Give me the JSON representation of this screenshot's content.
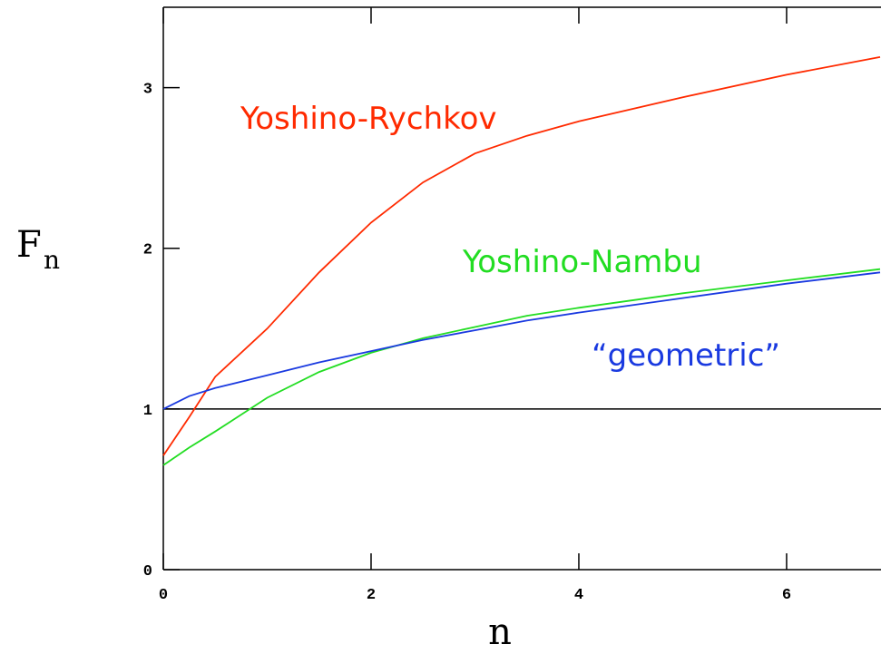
{
  "chart_data": {
    "type": "line",
    "xlabel": "n",
    "ylabel": "F",
    "ylabel_subscript": "n",
    "x": [
      0,
      0.25,
      0.5,
      1,
      1.5,
      2,
      2.5,
      3,
      3.5,
      4,
      5,
      6,
      6.9
    ],
    "series": [
      {
        "name": "Yoshino-Rychkov",
        "color": "#ff2a00",
        "values": [
          0.71,
          0.95,
          1.2,
          1.5,
          1.85,
          2.16,
          2.41,
          2.59,
          2.7,
          2.79,
          2.94,
          3.08,
          3.19
        ]
      },
      {
        "name": "Yoshino-Nambu",
        "color": "#22dd22",
        "values": [
          0.65,
          0.76,
          0.86,
          1.07,
          1.23,
          1.35,
          1.44,
          1.51,
          1.58,
          1.63,
          1.72,
          1.8,
          1.87
        ]
      },
      {
        "name": "“geometric”",
        "color": "#1a3ae0",
        "values": [
          1.0,
          1.08,
          1.13,
          1.21,
          1.29,
          1.36,
          1.43,
          1.49,
          1.55,
          1.6,
          1.69,
          1.78,
          1.85
        ]
      }
    ],
    "reference_line": 1,
    "xlim": [
      0,
      6.9
    ],
    "ylim": [
      0,
      3.5
    ],
    "xticks": [
      0,
      2,
      4,
      6
    ],
    "yticks": [
      0,
      1,
      2,
      3
    ]
  }
}
